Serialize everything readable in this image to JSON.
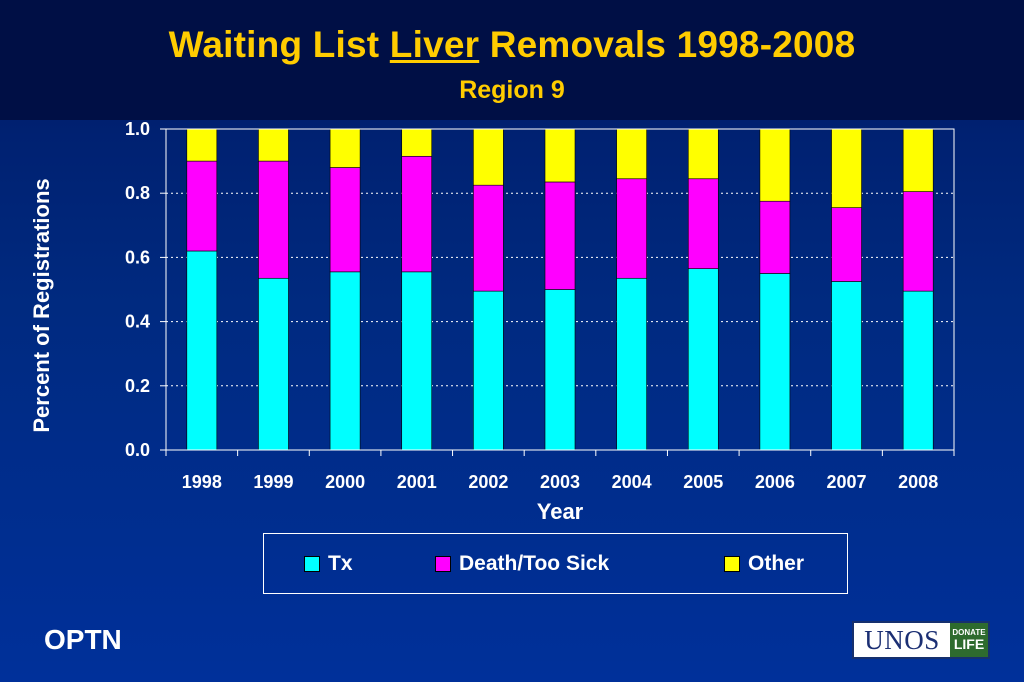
{
  "header": {
    "title_part1": "Waiting List ",
    "title_underlined": "Liver",
    "title_part2": " Removals 1998-2008",
    "subtitle": "Region 9"
  },
  "footer": {
    "left_text": "OPTN",
    "logo_text": "UNOS",
    "logo_badge_line1": "DONATE",
    "logo_badge_line2": "LIFE"
  },
  "colors": {
    "Tx": "#00ffff",
    "Death/Too Sick": "#ff00ff",
    "Other": "#ffff00",
    "title": "#ffcc00"
  },
  "chart_data": {
    "type": "bar",
    "stacked": true,
    "title": "Waiting List Liver Removals 1998-2008",
    "subtitle": "Region 9",
    "xlabel": "Year",
    "ylabel": "Percent of Registrations",
    "ylim": [
      0,
      1.0
    ],
    "yticks": [
      "0.0",
      "0.2",
      "0.4",
      "0.6",
      "0.8",
      "1.0"
    ],
    "grid": true,
    "legend_position": "bottom",
    "categories": [
      "1998",
      "1999",
      "2000",
      "2001",
      "2002",
      "2003",
      "2004",
      "2005",
      "2006",
      "2007",
      "2008"
    ],
    "series": [
      {
        "name": "Tx",
        "values": [
          0.62,
          0.535,
          0.555,
          0.555,
          0.495,
          0.5,
          0.535,
          0.565,
          0.55,
          0.525,
          0.495
        ]
      },
      {
        "name": "Death/Too Sick",
        "values": [
          0.28,
          0.365,
          0.325,
          0.36,
          0.33,
          0.335,
          0.31,
          0.28,
          0.225,
          0.23,
          0.31
        ]
      },
      {
        "name": "Other",
        "values": [
          0.1,
          0.1,
          0.12,
          0.085,
          0.175,
          0.165,
          0.155,
          0.155,
          0.225,
          0.245,
          0.195
        ]
      }
    ]
  }
}
